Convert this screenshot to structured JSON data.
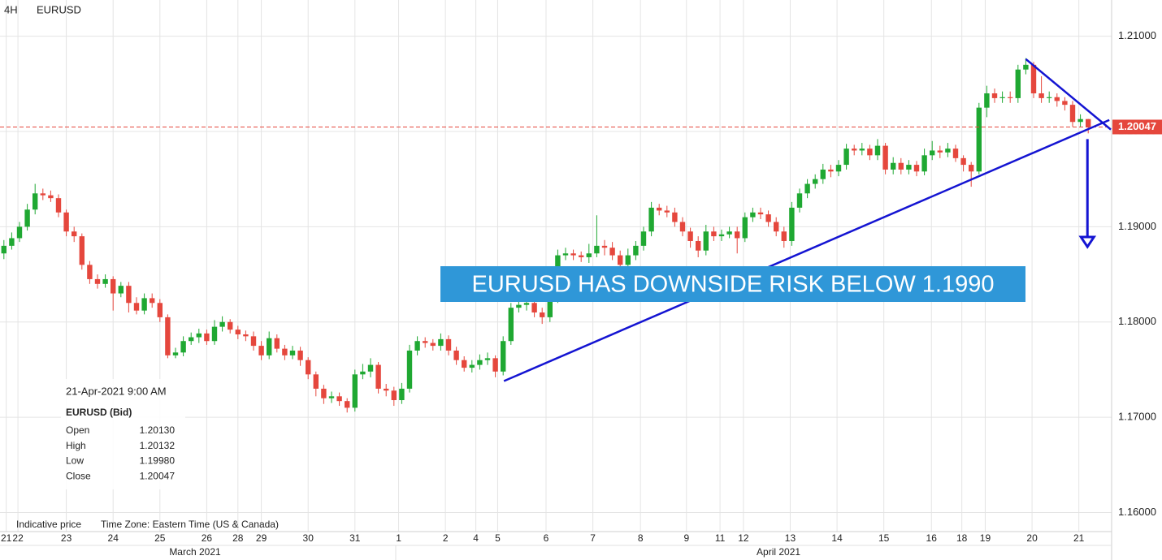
{
  "chart_data": {
    "type": "candlestick",
    "timeframe": "4H",
    "title": "EURUSD",
    "up_color": "#1fa832",
    "down_color": "#e5473d",
    "grid": true,
    "xlim": [
      -0.5,
      142
    ],
    "ylim": [
      1.158,
      1.2138
    ],
    "yticks": [
      {
        "value": 1.16,
        "label": "1.16000"
      },
      {
        "value": 1.17,
        "label": "1.17000"
      },
      {
        "value": 1.18,
        "label": "1.18000"
      },
      {
        "value": 1.19,
        "label": "1.19000"
      },
      {
        "value": 1.2,
        "label": "1.20000"
      },
      {
        "value": 1.21,
        "label": "1.21000"
      }
    ],
    "xticks": [
      {
        "value": 0.3,
        "label": "21"
      },
      {
        "value": 1.8,
        "label": "22"
      },
      {
        "value": 8,
        "label": "23"
      },
      {
        "value": 14,
        "label": "24"
      },
      {
        "value": 20,
        "label": "25"
      },
      {
        "value": 26,
        "label": "26"
      },
      {
        "value": 30,
        "label": "28"
      },
      {
        "value": 33,
        "label": "29"
      },
      {
        "value": 39,
        "label": "30"
      },
      {
        "value": 45,
        "label": "31"
      },
      {
        "value": 50.6,
        "label": "1"
      },
      {
        "value": 56.6,
        "label": "2"
      },
      {
        "value": 60.5,
        "label": "4"
      },
      {
        "value": 63.3,
        "label": "5"
      },
      {
        "value": 69.5,
        "label": "6"
      },
      {
        "value": 75.5,
        "label": "7"
      },
      {
        "value": 81.6,
        "label": "8"
      },
      {
        "value": 87.5,
        "label": "9"
      },
      {
        "value": 91.8,
        "label": "11"
      },
      {
        "value": 94.8,
        "label": "12"
      },
      {
        "value": 100.8,
        "label": "13"
      },
      {
        "value": 106.8,
        "label": "14"
      },
      {
        "value": 112.8,
        "label": "15"
      },
      {
        "value": 118.9,
        "label": "16"
      },
      {
        "value": 122.8,
        "label": "18"
      },
      {
        "value": 125.8,
        "label": "19"
      },
      {
        "value": 131.8,
        "label": "20"
      },
      {
        "value": 137.8,
        "label": "21"
      }
    ],
    "month_ticks": [
      {
        "value": 24.5,
        "label": "March 2021"
      },
      {
        "value": 99.3,
        "label": "April 2021"
      }
    ],
    "open": [
      1.1872,
      1.188,
      1.1888,
      1.19,
      1.1918,
      1.1935,
      1.1933,
      1.193,
      1.1915,
      1.1895,
      1.189,
      1.186,
      1.1845,
      1.184,
      1.1845,
      1.183,
      1.1838,
      1.182,
      1.1812,
      1.1825,
      1.182,
      1.1805,
      1.1765,
      1.1768,
      1.178,
      1.1784,
      1.1788,
      1.178,
      1.1795,
      1.18,
      1.1792,
      1.1787,
      1.1785,
      1.1775,
      1.1765,
      1.1783,
      1.1772,
      1.1765,
      1.177,
      1.176,
      1.1745,
      1.173,
      1.172,
      1.1722,
      1.1717,
      1.171,
      1.1745,
      1.1748,
      1.1755,
      1.173,
      1.1728,
      1.1718,
      1.173,
      1.177,
      1.178,
      1.1778,
      1.1775,
      1.1782,
      1.177,
      1.176,
      1.1752,
      1.1755,
      1.176,
      1.1762,
      1.1748,
      1.178,
      1.1815,
      1.1818,
      1.182,
      1.181,
      1.1805,
      1.1825,
      1.187,
      1.1872,
      1.187,
      1.1868,
      1.1872,
      1.188,
      1.1878,
      1.187,
      1.186,
      1.187,
      1.188,
      1.1895,
      1.192,
      1.1917,
      1.1915,
      1.1905,
      1.1895,
      1.1885,
      1.1875,
      1.1895,
      1.189,
      1.1892,
      1.1895,
      1.1888,
      1.191,
      1.1915,
      1.1913,
      1.1905,
      1.1895,
      1.1885,
      1.192,
      1.1935,
      1.1945,
      1.195,
      1.196,
      1.1958,
      1.1965,
      1.1982,
      1.198,
      1.1982,
      1.1975,
      1.1985,
      1.196,
      1.1967,
      1.196,
      1.1965,
      1.1958,
      1.1975,
      1.198,
      1.1978,
      1.1982,
      1.1972,
      1.1965,
      1.1958,
      1.2025,
      1.204,
      1.2035,
      1.2036,
      1.2035,
      1.2065,
      1.207,
      1.204,
      1.2035,
      1.2036,
      1.2032,
      1.2028,
      1.201,
      1.2013
    ],
    "high": [
      1.1886,
      1.1894,
      1.1905,
      1.1924,
      1.1945,
      1.194,
      1.1938,
      1.1934,
      1.1918,
      1.19,
      1.1893,
      1.1864,
      1.185,
      1.185,
      1.1848,
      1.1842,
      1.1842,
      1.1826,
      1.183,
      1.183,
      1.1824,
      1.1808,
      1.1773,
      1.1785,
      1.1789,
      1.1793,
      1.1792,
      1.1802,
      1.1806,
      1.1803,
      1.1796,
      1.1791,
      1.179,
      1.178,
      1.179,
      1.1787,
      1.1776,
      1.1775,
      1.1774,
      1.1763,
      1.1748,
      1.1734,
      1.1727,
      1.1726,
      1.172,
      1.175,
      1.1756,
      1.1762,
      1.1758,
      1.1735,
      1.1732,
      1.1736,
      1.1776,
      1.1785,
      1.1784,
      1.1782,
      1.1788,
      1.1786,
      1.1774,
      1.1764,
      1.176,
      1.1766,
      1.1768,
      1.1765,
      1.1785,
      1.182,
      1.1825,
      1.1826,
      1.1824,
      1.1815,
      1.183,
      1.1876,
      1.1878,
      1.1876,
      1.1874,
      1.1882,
      1.1912,
      1.1886,
      1.1884,
      1.1875,
      1.1877,
      1.1885,
      1.19,
      1.1926,
      1.1924,
      1.1922,
      1.192,
      1.191,
      1.1899,
      1.189,
      1.1902,
      1.19,
      1.1897,
      1.19,
      1.19,
      1.1915,
      1.192,
      1.192,
      1.1917,
      1.191,
      1.19,
      1.1926,
      1.194,
      1.195,
      1.1955,
      1.1966,
      1.1965,
      1.197,
      1.1987,
      1.1986,
      1.1988,
      1.1986,
      1.1992,
      1.1988,
      1.1973,
      1.1972,
      1.197,
      1.1969,
      1.1982,
      1.199,
      1.1985,
      1.1988,
      1.1986,
      1.1975,
      1.1968,
      1.203,
      1.2048,
      1.2045,
      1.2042,
      1.2042,
      1.207,
      1.2077,
      1.2073,
      1.2058,
      1.2042,
      1.204,
      1.2036,
      1.2032,
      1.2018,
      1.20132
    ],
    "low": [
      1.1866,
      1.1876,
      1.1884,
      1.1896,
      1.1913,
      1.1928,
      1.1926,
      1.191,
      1.189,
      1.1884,
      1.1855,
      1.184,
      1.1835,
      1.1836,
      1.1812,
      1.1826,
      1.181,
      1.1808,
      1.1808,
      1.1815,
      1.18,
      1.1762,
      1.1762,
      1.1764,
      1.1776,
      1.1778,
      1.1776,
      1.1776,
      1.179,
      1.1788,
      1.1782,
      1.178,
      1.177,
      1.176,
      1.1761,
      1.1768,
      1.176,
      1.1761,
      1.1754,
      1.174,
      1.1722,
      1.1714,
      1.1715,
      1.1712,
      1.1705,
      1.1706,
      1.174,
      1.1742,
      1.1725,
      1.1722,
      1.1712,
      1.1714,
      1.1726,
      1.1765,
      1.1773,
      1.177,
      1.177,
      1.1765,
      1.1755,
      1.1748,
      1.1747,
      1.175,
      1.1755,
      1.1742,
      1.1744,
      1.1776,
      1.181,
      1.1812,
      1.1805,
      1.1798,
      1.18,
      1.182,
      1.1865,
      1.1865,
      1.1863,
      1.1862,
      1.1868,
      1.187,
      1.1865,
      1.1855,
      1.1856,
      1.1865,
      1.1875,
      1.189,
      1.1912,
      1.191,
      1.19,
      1.189,
      1.1878,
      1.1868,
      1.187,
      1.1885,
      1.1885,
      1.1888,
      1.1872,
      1.1884,
      1.1905,
      1.1908,
      1.19,
      1.189,
      1.1878,
      1.188,
      1.1915,
      1.193,
      1.194,
      1.1945,
      1.1952,
      1.1953,
      1.196,
      1.1975,
      1.1975,
      1.197,
      1.197,
      1.1955,
      1.1955,
      1.1955,
      1.1955,
      1.1953,
      1.1954,
      1.197,
      1.1972,
      1.1973,
      1.1968,
      1.1958,
      1.1942,
      1.1955,
      1.2015,
      1.203,
      1.203,
      1.203,
      1.203,
      1.206,
      1.2035,
      1.203,
      1.203,
      1.2026,
      1.2022,
      1.2005,
      1.2005,
      1.1998
    ],
    "close": [
      1.188,
      1.1888,
      1.19,
      1.1918,
      1.1935,
      1.1933,
      1.193,
      1.1915,
      1.1895,
      1.189,
      1.186,
      1.1845,
      1.184,
      1.1845,
      1.183,
      1.1838,
      1.182,
      1.1812,
      1.1825,
      1.182,
      1.1805,
      1.1765,
      1.1768,
      1.178,
      1.1784,
      1.1788,
      1.178,
      1.1795,
      1.18,
      1.1792,
      1.1787,
      1.1785,
      1.1775,
      1.1765,
      1.1783,
      1.1772,
      1.1765,
      1.177,
      1.176,
      1.1745,
      1.173,
      1.172,
      1.1722,
      1.1717,
      1.171,
      1.1745,
      1.1748,
      1.1755,
      1.173,
      1.1728,
      1.1718,
      1.173,
      1.177,
      1.178,
      1.1778,
      1.1775,
      1.1782,
      1.177,
      1.176,
      1.1752,
      1.1755,
      1.176,
      1.1762,
      1.1748,
      1.178,
      1.1815,
      1.1818,
      1.182,
      1.181,
      1.1805,
      1.1825,
      1.187,
      1.1872,
      1.187,
      1.1868,
      1.1872,
      1.188,
      1.1878,
      1.187,
      1.186,
      1.187,
      1.188,
      1.1895,
      1.192,
      1.1917,
      1.1915,
      1.1905,
      1.1895,
      1.1885,
      1.1875,
      1.1895,
      1.189,
      1.1892,
      1.1895,
      1.1888,
      1.191,
      1.1915,
      1.1913,
      1.1905,
      1.1895,
      1.1885,
      1.192,
      1.1935,
      1.1945,
      1.195,
      1.196,
      1.1958,
      1.1965,
      1.1982,
      1.198,
      1.1982,
      1.1975,
      1.1985,
      1.196,
      1.1967,
      1.196,
      1.1965,
      1.1958,
      1.1975,
      1.198,
      1.1978,
      1.1982,
      1.1972,
      1.1965,
      1.1958,
      1.2025,
      1.204,
      1.2035,
      1.2036,
      1.2035,
      1.2065,
      1.207,
      1.204,
      1.2035,
      1.2036,
      1.2032,
      1.2028,
      1.201,
      1.2013,
      1.20047
    ],
    "last_price": {
      "value": 1.20047,
      "label": "1.20047",
      "color": "#e5473d"
    },
    "trendlines": [
      {
        "x": [
          64.1,
          141.7
        ],
        "y": [
          1.1738,
          1.2012
        ],
        "color": "#1414d2"
      },
      {
        "x": [
          131,
          141.9
        ],
        "y": [
          1.2076,
          1.2002
        ],
        "color": "#1414d2"
      }
    ],
    "arrow": {
      "x": 138.9,
      "y": [
        1.1992,
        1.1879
      ],
      "color": "#1414d2"
    },
    "annotation": "EURUSD HAS DOWNSIDE RISK BELOW 1.1990",
    "annotation_color": "#2f97d8",
    "info": {
      "date": "21-Apr-2021 9:00 AM",
      "symbol": "EURUSD (Bid)",
      "rows": [
        [
          "Open",
          "1.20130"
        ],
        [
          "High",
          "1.20132"
        ],
        [
          "Low",
          "1.19980"
        ],
        [
          "Close",
          "1.20047"
        ]
      ]
    },
    "footer": [
      "Indicative price",
      "Time Zone: Eastern Time (US & Canada)"
    ]
  }
}
